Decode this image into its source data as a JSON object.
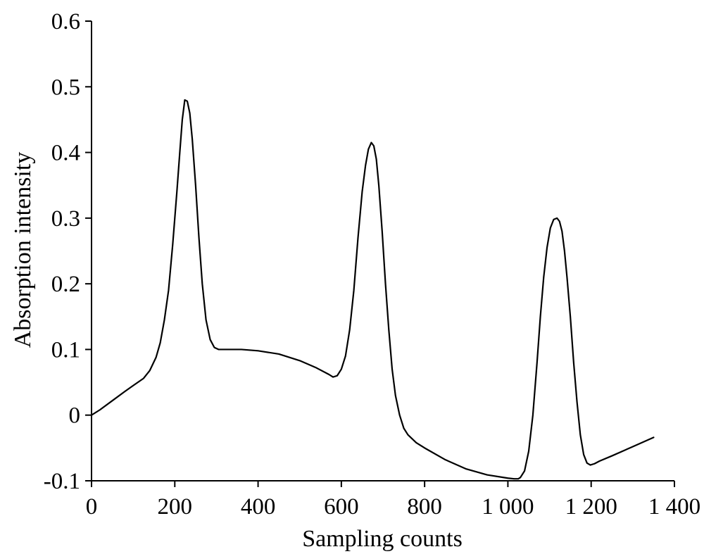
{
  "chart_data": {
    "type": "line",
    "title": "",
    "xlabel": "Sampling  counts",
    "ylabel": "Absorption  intensity",
    "xlim": [
      0,
      1400
    ],
    "ylim": [
      -0.1,
      0.6
    ],
    "x_ticks": [
      0,
      200,
      400,
      600,
      800,
      1000,
      1200,
      1400
    ],
    "x_tick_labels": [
      "0",
      "200",
      "400",
      "600",
      "800",
      "1 000",
      "1 200",
      "1 400"
    ],
    "y_ticks": [
      -0.1,
      0,
      0.1,
      0.2,
      0.3,
      0.4,
      0.5,
      0.6
    ],
    "y_tick_labels": [
      "-0.1",
      "0",
      "0.1",
      "0.2",
      "0.3",
      "0.4",
      "0.5",
      "0.6"
    ],
    "grid": false,
    "series": [
      {
        "color": "#000000",
        "x": [
          0,
          20,
          50,
          80,
          100,
          125,
          140,
          155,
          165,
          175,
          185,
          195,
          205,
          212,
          218,
          224,
          230,
          236,
          242,
          250,
          258,
          266,
          275,
          285,
          295,
          305,
          320,
          360,
          400,
          450,
          500,
          540,
          570,
          580,
          590,
          600,
          610,
          620,
          630,
          640,
          650,
          658,
          665,
          672,
          678,
          684,
          690,
          698,
          706,
          714,
          722,
          730,
          740,
          750,
          760,
          770,
          780,
          800,
          850,
          900,
          950,
          1000,
          1015,
          1025,
          1030,
          1040,
          1050,
          1060,
          1070,
          1078,
          1086,
          1094,
          1102,
          1110,
          1118,
          1124,
          1130,
          1136,
          1142,
          1150,
          1158,
          1166,
          1174,
          1182,
          1190,
          1198,
          1208,
          1220,
          1250,
          1300,
          1350
        ],
        "y": [
          0.0,
          0.008,
          0.022,
          0.036,
          0.045,
          0.056,
          0.068,
          0.088,
          0.11,
          0.145,
          0.19,
          0.26,
          0.34,
          0.4,
          0.45,
          0.48,
          0.478,
          0.46,
          0.42,
          0.35,
          0.27,
          0.2,
          0.145,
          0.115,
          0.103,
          0.1,
          0.1,
          0.1,
          0.098,
          0.093,
          0.083,
          0.072,
          0.062,
          0.058,
          0.06,
          0.07,
          0.09,
          0.13,
          0.19,
          0.27,
          0.34,
          0.38,
          0.405,
          0.415,
          0.41,
          0.39,
          0.35,
          0.28,
          0.2,
          0.13,
          0.07,
          0.03,
          0.0,
          -0.02,
          -0.03,
          -0.036,
          -0.042,
          -0.05,
          -0.068,
          -0.082,
          -0.091,
          -0.096,
          -0.097,
          -0.097,
          -0.095,
          -0.085,
          -0.055,
          0.0,
          0.08,
          0.15,
          0.21,
          0.255,
          0.285,
          0.298,
          0.3,
          0.295,
          0.28,
          0.25,
          0.21,
          0.15,
          0.08,
          0.02,
          -0.03,
          -0.06,
          -0.073,
          -0.076,
          -0.074,
          -0.07,
          -0.062,
          -0.048,
          -0.034
        ]
      }
    ]
  }
}
